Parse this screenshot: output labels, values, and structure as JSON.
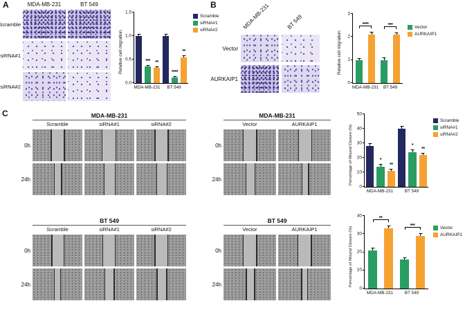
{
  "figure": {
    "colors": {
      "navy": "#23285f",
      "green": "#2a9d63",
      "orange": "#f5a233",
      "axis": "#000000"
    }
  },
  "panelA": {
    "label": "A",
    "col_headers": [
      "MDA-MB-231",
      "BT 549"
    ],
    "row_labels": [
      "Scramble",
      "siRNA#1",
      "siRNA#2"
    ],
    "cell_density": [
      [
        "dense",
        "dense"
      ],
      [
        "sparse",
        "sparse"
      ],
      [
        "medium",
        "sparse"
      ]
    ]
  },
  "panelB": {
    "label": "B",
    "col_headers": [
      "MDA-MB-231",
      "BT 549"
    ],
    "row_labels": [
      "Vector",
      "AURKAIP1"
    ],
    "cell_density": [
      [
        "medium",
        "sparse"
      ],
      [
        "dense",
        "medium"
      ]
    ]
  },
  "panelC": {
    "label": "C",
    "blocks": [
      {
        "title": "MDA-MB-231",
        "columns": [
          "Scramble",
          "siRNA#1",
          "siRNA#2"
        ],
        "rows": [
          "0h",
          "24h"
        ],
        "wound_gaps": [
          [
            [
              38,
              63
            ],
            [
              36,
              62
            ],
            [
              38,
              63
            ]
          ],
          [
            [
              44,
              57
            ],
            [
              40,
              61
            ],
            [
              41,
              61
            ]
          ]
        ]
      },
      {
        "title": "MDA-MB-231",
        "columns": [
          "Vector",
          "AURKAIP1"
        ],
        "rows": [
          "0h",
          "24h"
        ],
        "wound_gaps": [
          [
            [
              38,
              62
            ],
            [
              39,
              63
            ]
          ],
          [
            [
              43,
              59
            ],
            [
              46,
              57
            ]
          ]
        ]
      },
      {
        "title": "BT 549",
        "columns": [
          "Scramble",
          "siRNA#1",
          "siRNA#2"
        ],
        "rows": [
          "0h",
          "24h"
        ],
        "wound_gaps": [
          [
            [
              39,
              62
            ],
            [
              37,
              61
            ],
            [
              38,
              62
            ]
          ],
          [
            [
              44,
              55
            ],
            [
              41,
              59
            ],
            [
              42,
              60
            ]
          ]
        ]
      },
      {
        "title": "BT 549",
        "columns": [
          "Vector",
          "AURKAIP1"
        ],
        "rows": [
          "0h",
          "24h"
        ],
        "wound_gaps": [
          [
            [
              38,
              62
            ],
            [
              38,
              62
            ]
          ],
          [
            [
              44,
              58
            ],
            [
              45,
              55
            ]
          ]
        ]
      }
    ]
  },
  "chart_data": [
    {
      "panel": "A",
      "type": "bar",
      "title": "",
      "ylabel": "Relative cell migration",
      "ylim": [
        0,
        1.5
      ],
      "yticks": [
        "0.0",
        "0.5",
        "1.0",
        "1.5"
      ],
      "categories": [
        "MDA-MB-231",
        "BT 549"
      ],
      "series": [
        {
          "name": "Scramble",
          "color": "#23285f",
          "values": [
            1.0,
            1.0
          ],
          "errors": [
            0.04,
            0.05
          ]
        },
        {
          "name": "siRNA#1",
          "color": "#2a9d63",
          "values": [
            0.35,
            0.12
          ],
          "errors": [
            0.03,
            0.02
          ]
        },
        {
          "name": "siRNA#2",
          "color": "#f5a233",
          "values": [
            0.33,
            0.55
          ],
          "errors": [
            0.03,
            0.04
          ]
        }
      ],
      "annotations": [
        {
          "type": "star",
          "cat": 0,
          "series": 1,
          "text": "***"
        },
        {
          "type": "star",
          "cat": 0,
          "series": 2,
          "text": "**"
        },
        {
          "type": "star",
          "cat": 1,
          "series": 1,
          "text": "****"
        },
        {
          "type": "star",
          "cat": 1,
          "series": 2,
          "text": "**"
        }
      ],
      "legend_position": "right"
    },
    {
      "panel": "B",
      "type": "bar",
      "title": "",
      "ylabel": "Relative cell migration",
      "ylim": [
        0,
        3
      ],
      "yticks": [
        "0",
        "1",
        "2",
        "3"
      ],
      "categories": [
        "MDA-MB-231",
        "BT 549"
      ],
      "series": [
        {
          "name": "Vector",
          "color": "#2a9d63",
          "values": [
            1.0,
            1.0
          ],
          "errors": [
            0.08,
            0.1
          ]
        },
        {
          "name": "AURKAIP1",
          "color": "#f5a233",
          "values": [
            2.1,
            2.1
          ],
          "errors": [
            0.12,
            0.1
          ]
        }
      ],
      "annotations": [
        {
          "type": "bracket",
          "cat": 0,
          "s1": 0,
          "s2": 1,
          "text": "****"
        },
        {
          "type": "bracket",
          "cat": 1,
          "s1": 0,
          "s2": 1,
          "text": "***"
        }
      ],
      "legend_position": "right"
    },
    {
      "panel": "C-top",
      "type": "bar",
      "title": "",
      "ylabel": "Percentage of Wound Closure (%)",
      "ylim": [
        0,
        50
      ],
      "yticks": [
        "0",
        "10",
        "20",
        "30",
        "40",
        "50"
      ],
      "categories": [
        "MDA-MB-231",
        "BT 549"
      ],
      "series": [
        {
          "name": "Scramble",
          "color": "#23285f",
          "values": [
            28,
            40
          ],
          "errors": [
            2,
            2
          ]
        },
        {
          "name": "siRNA#1",
          "color": "#2a9d63",
          "values": [
            14,
            24
          ],
          "errors": [
            1.5,
            1.5
          ]
        },
        {
          "name": "siRNA#2",
          "color": "#f5a233",
          "values": [
            11,
            22
          ],
          "errors": [
            1.5,
            1.5
          ]
        }
      ],
      "annotations": [
        {
          "type": "star",
          "cat": 0,
          "series": 1,
          "text": "*"
        },
        {
          "type": "star",
          "cat": 0,
          "series": 2,
          "text": "**"
        },
        {
          "type": "star",
          "cat": 1,
          "series": 1,
          "text": "*"
        },
        {
          "type": "star",
          "cat": 1,
          "series": 2,
          "text": "**"
        }
      ],
      "legend_position": "right"
    },
    {
      "panel": "C-bottom",
      "type": "bar",
      "title": "",
      "ylabel": "Percentage of Wound Closure (%)",
      "ylim": [
        0,
        40
      ],
      "yticks": [
        "0",
        "10",
        "20",
        "30",
        "40"
      ],
      "categories": [
        "MDA-MB-231",
        "BT 549"
      ],
      "series": [
        {
          "name": "Vector",
          "color": "#2a9d63",
          "values": [
            21,
            16
          ],
          "errors": [
            1.5,
            1
          ]
        },
        {
          "name": "AURKAIP1",
          "color": "#f5a233",
          "values": [
            33,
            29
          ],
          "errors": [
            1.5,
            1.5
          ]
        }
      ],
      "annotations": [
        {
          "type": "bracket",
          "cat": 0,
          "s1": 0,
          "s2": 1,
          "text": "**"
        },
        {
          "type": "bracket",
          "cat": 1,
          "s1": 0,
          "s2": 1,
          "text": "***"
        }
      ],
      "legend_position": "right"
    }
  ]
}
